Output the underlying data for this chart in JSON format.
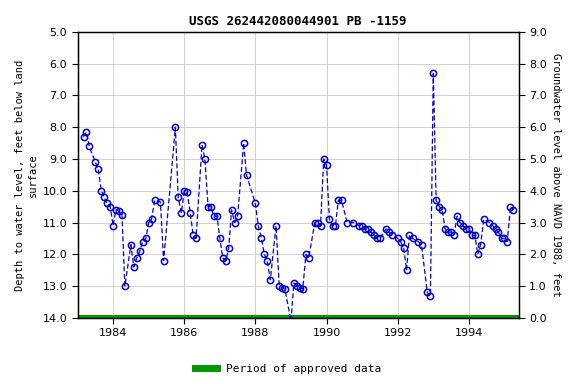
{
  "title": "USGS 262442080044901 PB -1159",
  "ylabel_left": "Depth to water level, feet below land\nsurface",
  "ylabel_right": "Groundwater level above NAVD 1988, feet",
  "ylim_left": [
    14.0,
    5.0
  ],
  "ylim_right": [
    0.0,
    9.0
  ],
  "yticks_left": [
    5.0,
    6.0,
    7.0,
    8.0,
    9.0,
    10.0,
    11.0,
    12.0,
    13.0,
    14.0
  ],
  "yticks_right": [
    0.0,
    1.0,
    2.0,
    3.0,
    4.0,
    5.0,
    6.0,
    7.0,
    8.0,
    9.0
  ],
  "xlim": [
    1983.0,
    1995.4
  ],
  "xticks": [
    1984,
    1986,
    1988,
    1990,
    1992,
    1994
  ],
  "background_color": "#ffffff",
  "plot_bg_color": "#ffffff",
  "grid_color": "#c0c0c0",
  "line_color": "#0000cc",
  "marker_color": "#0000cc",
  "green_line_color": "#009900",
  "legend_label": "Period of approved data",
  "data_x": [
    1983.17,
    1983.25,
    1983.33,
    1983.5,
    1983.58,
    1983.67,
    1983.75,
    1983.83,
    1983.92,
    1984.0,
    1984.08,
    1984.17,
    1984.25,
    1984.33,
    1984.5,
    1984.58,
    1984.67,
    1984.75,
    1984.83,
    1984.92,
    1985.0,
    1985.08,
    1985.17,
    1985.33,
    1985.42,
    1985.75,
    1985.83,
    1985.92,
    1986.0,
    1986.08,
    1986.17,
    1986.25,
    1986.33,
    1986.5,
    1986.58,
    1986.67,
    1986.75,
    1986.83,
    1986.92,
    1987.0,
    1987.08,
    1987.17,
    1987.25,
    1987.33,
    1987.42,
    1987.5,
    1987.67,
    1987.75,
    1988.0,
    1988.08,
    1988.17,
    1988.25,
    1988.33,
    1988.42,
    1988.58,
    1988.67,
    1988.75,
    1988.83,
    1989.0,
    1989.08,
    1989.17,
    1989.25,
    1989.33,
    1989.42,
    1989.5,
    1989.67,
    1989.75,
    1989.83,
    1989.92,
    1990.0,
    1990.08,
    1990.17,
    1990.25,
    1990.33,
    1990.42,
    1990.58,
    1990.75,
    1990.92,
    1991.0,
    1991.08,
    1991.17,
    1991.25,
    1991.33,
    1991.42,
    1991.5,
    1991.67,
    1991.75,
    1991.83,
    1992.0,
    1992.08,
    1992.17,
    1992.25,
    1992.33,
    1992.42,
    1992.58,
    1992.67,
    1992.83,
    1992.92,
    1993.0,
    1993.08,
    1993.17,
    1993.25,
    1993.33,
    1993.42,
    1993.5,
    1993.58,
    1993.67,
    1993.75,
    1993.83,
    1993.92,
    1994.0,
    1994.08,
    1994.17,
    1994.25,
    1994.33,
    1994.42,
    1994.58,
    1994.67,
    1994.75,
    1994.83,
    1994.92,
    1995.0,
    1995.08,
    1995.17,
    1995.25
  ],
  "data_y": [
    8.3,
    8.15,
    8.6,
    9.1,
    9.3,
    10.0,
    10.2,
    10.4,
    10.5,
    11.1,
    10.6,
    10.65,
    10.75,
    13.0,
    11.7,
    12.4,
    12.1,
    11.9,
    11.6,
    11.5,
    11.0,
    10.9,
    10.3,
    10.35,
    12.2,
    8.0,
    10.2,
    10.7,
    10.0,
    10.05,
    10.7,
    11.4,
    11.5,
    8.55,
    9.0,
    10.5,
    10.5,
    10.8,
    10.8,
    11.5,
    12.1,
    12.2,
    11.8,
    10.6,
    11.0,
    10.8,
    8.5,
    9.5,
    10.4,
    11.1,
    11.5,
    12.0,
    12.2,
    12.8,
    11.1,
    13.0,
    13.05,
    13.1,
    14.1,
    12.9,
    13.0,
    13.05,
    13.1,
    12.0,
    12.1,
    11.0,
    11.0,
    11.1,
    9.0,
    9.2,
    10.9,
    11.1,
    11.1,
    10.3,
    10.3,
    11.0,
    11.0,
    11.1,
    11.1,
    11.2,
    11.2,
    11.3,
    11.4,
    11.5,
    11.5,
    11.2,
    11.3,
    11.4,
    11.5,
    11.6,
    11.8,
    12.5,
    11.4,
    11.5,
    11.6,
    11.7,
    13.2,
    13.3,
    6.3,
    10.3,
    10.5,
    10.6,
    11.2,
    11.3,
    11.3,
    11.4,
    10.8,
    11.0,
    11.1,
    11.2,
    11.2,
    11.4,
    11.4,
    12.0,
    11.7,
    10.9,
    11.0,
    11.1,
    11.2,
    11.3,
    11.5,
    11.5,
    11.6,
    10.5,
    10.6
  ]
}
